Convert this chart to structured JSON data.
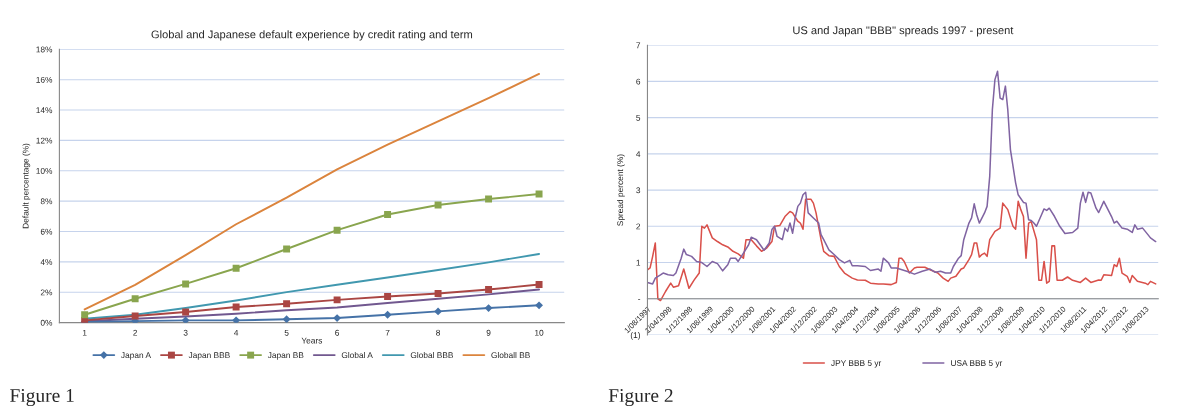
{
  "chart_data": [
    {
      "type": "line",
      "title": "Global and Japanese default experience by credit rating and term",
      "xlabel": "Years",
      "ylabel": "Default percentage (%)",
      "categories": [
        "1",
        "2",
        "3",
        "4",
        "5",
        "6",
        "7",
        "8",
        "9",
        "10"
      ],
      "ylim": [
        0,
        18
      ],
      "yticks": [
        {
          "value": 0,
          "label": "0%"
        },
        {
          "value": 2,
          "label": "2%"
        },
        {
          "value": 4,
          "label": "4%"
        },
        {
          "value": 6,
          "label": "6%"
        },
        {
          "value": 8,
          "label": "8%"
        },
        {
          "value": 10,
          "label": "10%"
        },
        {
          "value": 12,
          "label": "12%"
        },
        {
          "value": 14,
          "label": "14%"
        },
        {
          "value": 16,
          "label": "16%"
        },
        {
          "value": 18,
          "label": "18%"
        }
      ],
      "grid": "y",
      "legend": "bottom",
      "annotations": [
        "Figure 1"
      ],
      "series": [
        {
          "name": "Japan A",
          "color": "#4572a7",
          "marker": "diamond",
          "values": [
            0.05,
            0.1,
            0.15,
            0.15,
            0.22,
            0.3,
            0.52,
            0.74,
            0.96,
            1.14
          ]
        },
        {
          "name": "Japan BBB",
          "color": "#aa4643",
          "marker": "square",
          "values": [
            0.15,
            0.44,
            0.7,
            1.03,
            1.24,
            1.5,
            1.72,
            1.92,
            2.18,
            2.51
          ]
        },
        {
          "name": "Japan BB",
          "color": "#89a54e",
          "marker": "square",
          "values": [
            0.52,
            1.57,
            2.55,
            3.58,
            4.85,
            6.09,
            7.12,
            7.75,
            8.14,
            8.47
          ]
        },
        {
          "name": "Global A",
          "color": "#71588f",
          "values": [
            0.09,
            0.26,
            0.41,
            0.59,
            0.81,
            1.0,
            1.29,
            1.57,
            1.86,
            2.18
          ]
        },
        {
          "name": "Global BBB",
          "color": "#4198af",
          "values": [
            0.26,
            0.52,
            0.96,
            1.46,
            2.01,
            2.49,
            2.97,
            3.47,
            3.97,
            4.52
          ]
        },
        {
          "name": "Globall BB",
          "color": "#db843d",
          "values": [
            0.87,
            2.49,
            4.45,
            6.48,
            8.23,
            10.09,
            11.72,
            13.25,
            14.78,
            16.38
          ]
        }
      ]
    },
    {
      "type": "line",
      "title": "US and Japan \"BBB\" spreads 1997 - present",
      "ylabel": "Spread percent (%)",
      "xlim": [
        "1997-08",
        "2014-01"
      ],
      "xticks": [
        {
          "value": "1997-08-01",
          "label": "1/08/1997"
        },
        {
          "value": "1998-04-01",
          "label": "1/04/1998"
        },
        {
          "value": "1998-12-01",
          "label": "1/12/1998"
        },
        {
          "value": "1999-08-01",
          "label": "1/08/1999"
        },
        {
          "value": "2000-04-01",
          "label": "1/04/2000"
        },
        {
          "value": "2000-12-01",
          "label": "1/12/2000"
        },
        {
          "value": "2001-08-01",
          "label": "1/08/2001"
        },
        {
          "value": "2002-04-01",
          "label": "1/04/2002"
        },
        {
          "value": "2002-12-01",
          "label": "1/12/2002"
        },
        {
          "value": "2003-08-01",
          "label": "1/08/2003"
        },
        {
          "value": "2004-04-01",
          "label": "1/04/2004"
        },
        {
          "value": "2004-12-01",
          "label": "1/12/2004"
        },
        {
          "value": "2005-08-01",
          "label": "1/08/2005"
        },
        {
          "value": "2006-04-01",
          "label": "1/04/2006"
        },
        {
          "value": "2006-12-01",
          "label": "1/12/2006"
        },
        {
          "value": "2007-08-01",
          "label": "1/08/2007"
        },
        {
          "value": "2008-04-01",
          "label": "1/04/2008"
        },
        {
          "value": "2008-12-01",
          "label": "1/12/2008"
        },
        {
          "value": "2009-08-01",
          "label": "1/08/2009"
        },
        {
          "value": "2010-04-01",
          "label": "1/04/2010"
        },
        {
          "value": "2010-12-01",
          "label": "1/12/2010"
        },
        {
          "value": "2011-08-01",
          "label": "1/08/2011"
        },
        {
          "value": "2012-04-01",
          "label": "1/04/2012"
        },
        {
          "value": "2012-12-01",
          "label": "1/12/2012"
        },
        {
          "value": "2013-08-01",
          "label": "1/08/2013"
        }
      ],
      "ylim": [
        -1,
        7
      ],
      "yticks": [
        {
          "value": -1,
          "label": "(1)"
        },
        {
          "value": 0,
          "label": "-"
        },
        1,
        2,
        3,
        4,
        5,
        6,
        7
      ],
      "grid": "y",
      "legend": "bottom",
      "annotations": [
        "Figure 2"
      ],
      "series": [
        {
          "name": "JPY BBB 5 yr",
          "color": "#d9504a",
          "x": [
            "1997-08",
            "1997-09",
            "1997-10",
            "1997-11",
            "1997-12",
            "1998-01",
            "1998-03",
            "1998-05",
            "1998-06",
            "1998-08",
            "1998-10",
            "1998-12",
            "1999-02",
            "1999-04",
            "1999-05",
            "1999-06",
            "1999-07",
            "1999-09",
            "1999-11",
            "2000-01",
            "2000-03",
            "2000-05",
            "2000-07",
            "2000-09",
            "2000-10",
            "2000-12",
            "2001-02",
            "2001-04",
            "2001-06",
            "2001-08",
            "2001-09",
            "2001-11",
            "2002-01",
            "2002-03",
            "2002-04",
            "2002-06",
            "2002-07",
            "2002-08",
            "2002-09",
            "2002-11",
            "2002-12",
            "2003-01",
            "2003-03",
            "2003-04",
            "2003-06",
            "2003-08",
            "2003-10",
            "2003-12",
            "2004-03",
            "2004-05",
            "2004-08",
            "2004-10",
            "2005-01",
            "2005-03",
            "2005-06",
            "2005-08",
            "2005-09",
            "2005-10",
            "2005-11",
            "2006-01",
            "2006-03",
            "2006-04",
            "2006-07",
            "2006-09",
            "2006-12",
            "2007-02",
            "2007-04",
            "2007-05",
            "2007-07",
            "2007-09",
            "2007-10",
            "2007-12",
            "2008-01",
            "2008-02",
            "2008-03",
            "2008-04",
            "2008-05",
            "2008-06",
            "2008-07",
            "2008-08",
            "2008-10",
            "2008-12",
            "2009-01",
            "2009-03",
            "2009-05",
            "2009-06",
            "2009-07",
            "2009-08",
            "2009-09",
            "2009-10",
            "2009-11",
            "2009-12",
            "2010-02",
            "2010-03",
            "2010-04",
            "2010-05",
            "2010-06",
            "2010-07",
            "2010-08",
            "2010-09",
            "2010-10",
            "2010-12",
            "2011-02",
            "2011-04",
            "2011-07",
            "2011-09",
            "2011-11",
            "2012-02",
            "2012-03",
            "2012-04",
            "2012-07",
            "2012-08",
            "2012-09",
            "2012-10",
            "2012-11",
            "2013-01",
            "2013-02",
            "2013-03",
            "2013-05",
            "2013-08",
            "2013-09",
            "2013-10",
            "2013-12"
          ],
          "values": [
            0.8,
            0.85,
            1.17,
            1.54,
            0.0,
            -0.05,
            0.2,
            0.43,
            0.32,
            0.36,
            0.82,
            0.29,
            0.52,
            0.71,
            2.0,
            1.95,
            2.04,
            1.68,
            1.58,
            1.49,
            1.43,
            1.31,
            1.24,
            1.12,
            1.63,
            1.63,
            1.46,
            1.31,
            1.4,
            1.58,
            2.0,
            2.02,
            2.27,
            2.41,
            2.37,
            2.14,
            2.09,
            1.92,
            2.75,
            2.75,
            2.64,
            2.37,
            1.63,
            1.31,
            1.19,
            1.17,
            0.89,
            0.71,
            0.57,
            0.52,
            0.51,
            0.43,
            0.41,
            0.41,
            0.39,
            0.45,
            1.12,
            1.12,
            1.03,
            0.71,
            0.85,
            0.87,
            0.87,
            0.8,
            0.71,
            0.57,
            0.48,
            0.57,
            0.62,
            0.82,
            0.85,
            1.08,
            1.22,
            1.54,
            1.54,
            1.15,
            1.22,
            1.26,
            1.17,
            1.63,
            1.86,
            1.95,
            2.64,
            2.46,
            2.0,
            1.92,
            2.69,
            2.46,
            2.27,
            1.12,
            2.09,
            2.13,
            1.63,
            0.51,
            0.51,
            1.03,
            0.43,
            0.48,
            1.46,
            1.46,
            0.51,
            0.51,
            0.6,
            0.51,
            0.45,
            0.57,
            0.45,
            0.52,
            0.51,
            0.66,
            0.64,
            0.94,
            0.89,
            1.12,
            0.71,
            0.62,
            0.45,
            0.64,
            0.48,
            0.43,
            0.39,
            0.48,
            0.41
          ]
        },
        {
          "name": "USA BBB 5 yr",
          "color": "#8064a2",
          "x": [
            "1997-08",
            "1997-10",
            "1997-11",
            "1998-01",
            "1998-02",
            "1998-04",
            "1998-06",
            "1998-07",
            "1998-09",
            "1998-10",
            "1998-11",
            "1999-01",
            "1999-03",
            "1999-05",
            "1999-07",
            "1999-09",
            "1999-11",
            "2000-01",
            "2000-03",
            "2000-04",
            "2000-06",
            "2000-07",
            "2000-09",
            "2000-11",
            "2000-12",
            "2001-02",
            "2001-03",
            "2001-05",
            "2001-07",
            "2001-08",
            "2001-09",
            "2001-10",
            "2001-12",
            "2002-01",
            "2002-02",
            "2002-03",
            "2002-04",
            "2002-05",
            "2002-06",
            "2002-07",
            "2002-08",
            "2002-09",
            "2002-10",
            "2002-12",
            "2003-02",
            "2003-03",
            "2003-04",
            "2003-06",
            "2003-08",
            "2003-10",
            "2003-12",
            "2004-02",
            "2004-03",
            "2004-05",
            "2004-08",
            "2004-10",
            "2005-01",
            "2005-02",
            "2005-03",
            "2005-05",
            "2005-06",
            "2005-08",
            "2005-12",
            "2006-03",
            "2006-06",
            "2006-09",
            "2006-11",
            "2007-01",
            "2007-03",
            "2007-05",
            "2007-06",
            "2007-08",
            "2007-09",
            "2007-10",
            "2007-12",
            "2008-01",
            "2008-02",
            "2008-03",
            "2008-04",
            "2008-06",
            "2008-07",
            "2008-08",
            "2008-09",
            "2008-10",
            "2008-11",
            "2008-12",
            "2009-01",
            "2009-02",
            "2009-03",
            "2009-04",
            "2009-06",
            "2009-07",
            "2009-09",
            "2009-10",
            "2009-11",
            "2009-12",
            "2010-01",
            "2010-02",
            "2010-04",
            "2010-05",
            "2010-06",
            "2010-07",
            "2010-09",
            "2010-11",
            "2011-01",
            "2011-04",
            "2011-06",
            "2011-07",
            "2011-08",
            "2011-09",
            "2011-10",
            "2011-11",
            "2012-01",
            "2012-02",
            "2012-04",
            "2012-05",
            "2012-07",
            "2012-08",
            "2012-09",
            "2012-11",
            "2013-01",
            "2013-03",
            "2013-04",
            "2013-05",
            "2013-07",
            "2013-09",
            "2013-10",
            "2013-12"
          ],
          "values": [
            0.45,
            0.41,
            0.57,
            0.66,
            0.71,
            0.66,
            0.64,
            0.71,
            1.12,
            1.37,
            1.22,
            1.17,
            1.03,
            1.0,
            0.89,
            1.03,
            0.97,
            0.77,
            0.94,
            1.12,
            1.12,
            1.03,
            1.26,
            1.49,
            1.7,
            1.63,
            1.54,
            1.34,
            1.54,
            1.91,
            2.0,
            1.72,
            1.63,
            1.95,
            1.86,
            2.09,
            1.81,
            2.23,
            2.55,
            2.64,
            2.87,
            2.94,
            2.37,
            2.23,
            2.09,
            1.77,
            1.63,
            1.35,
            1.22,
            1.08,
            0.99,
            1.06,
            0.91,
            0.91,
            0.89,
            0.78,
            0.82,
            0.76,
            1.12,
            0.99,
            0.85,
            0.85,
            0.76,
            0.68,
            0.76,
            0.82,
            0.73,
            0.76,
            0.71,
            0.71,
            0.89,
            1.12,
            1.19,
            1.63,
            2.09,
            2.23,
            2.62,
            2.32,
            2.09,
            2.37,
            2.55,
            3.38,
            5.22,
            6.05,
            6.28,
            5.54,
            5.5,
            5.87,
            5.22,
            4.12,
            3.2,
            2.87,
            2.66,
            2.64,
            2.18,
            2.16,
            2.09,
            2.0,
            2.32,
            2.48,
            2.44,
            2.5,
            2.27,
            2.0,
            1.8,
            1.83,
            1.95,
            2.64,
            2.94,
            2.66,
            2.94,
            2.92,
            2.5,
            2.38,
            2.69,
            2.55,
            2.27,
            2.09,
            2.14,
            1.95,
            1.92,
            1.83,
            2.04,
            1.92,
            1.95,
            1.77,
            1.68,
            1.58
          ]
        }
      ]
    }
  ]
}
